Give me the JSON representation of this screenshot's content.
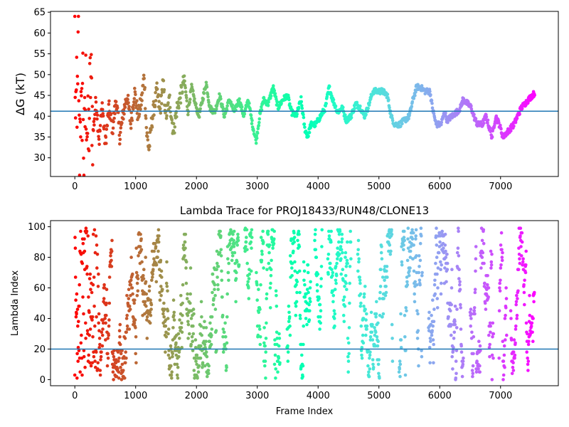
{
  "chart_data": [
    {
      "type": "scatter",
      "title": "",
      "xlabel": "",
      "ylabel": "ΔG (kT)",
      "xlim": [
        -400,
        7950
      ],
      "ylim": [
        25.5,
        65.2
      ],
      "xticks": [
        0,
        1000,
        2000,
        3000,
        4000,
        5000,
        6000,
        7000
      ],
      "yticks": [
        30,
        35,
        40,
        45,
        50,
        55,
        60,
        65
      ],
      "hline": 41.2,
      "hline_color": "#1f77b4",
      "colormap": "rainbow (red at frame 0 → violet at last frame)",
      "frames": 7600,
      "series_keypoints": [
        [
          0,
          62
        ],
        [
          15,
          30
        ],
        [
          30,
          50
        ],
        [
          45,
          38
        ],
        [
          60,
          62
        ],
        [
          75,
          26
        ],
        [
          90,
          45
        ],
        [
          110,
          35
        ],
        [
          130,
          52
        ],
        [
          150,
          28
        ],
        [
          180,
          47
        ],
        [
          220,
          32
        ],
        [
          260,
          50
        ],
        [
          300,
          36
        ],
        [
          350,
          44
        ],
        [
          400,
          34
        ],
        [
          450,
          43
        ],
        [
          500,
          33
        ],
        [
          560,
          42
        ],
        [
          620,
          37
        ],
        [
          680,
          44
        ],
        [
          740,
          35
        ],
        [
          800,
          41
        ],
        [
          860,
          45
        ],
        [
          920,
          38
        ],
        [
          980,
          46
        ],
        [
          1040,
          40
        ],
        [
          1100,
          44
        ],
        [
          1140,
          50
        ],
        [
          1180,
          36
        ],
        [
          1220,
          32
        ],
        [
          1260,
          38
        ],
        [
          1300,
          42
        ],
        [
          1350,
          46
        ],
        [
          1400,
          41
        ],
        [
          1450,
          48
        ],
        [
          1500,
          40
        ],
        [
          1560,
          44
        ],
        [
          1620,
          36
        ],
        [
          1680,
          42
        ],
        [
          1740,
          45
        ],
        [
          1800,
          49
        ],
        [
          1860,
          41
        ],
        [
          1920,
          47
        ],
        [
          1980,
          43
        ],
        [
          2040,
          40
        ],
        [
          2100,
          44
        ],
        [
          2160,
          48
        ],
        [
          2220,
          42
        ],
        [
          2300,
          41
        ],
        [
          2380,
          45
        ],
        [
          2460,
          40
        ],
        [
          2540,
          44
        ],
        [
          2620,
          41
        ],
        [
          2700,
          44
        ],
        [
          2780,
          40
        ],
        [
          2850,
          44
        ],
        [
          2920,
          38
        ],
        [
          2980,
          34
        ],
        [
          3040,
          40
        ],
        [
          3100,
          44
        ],
        [
          3180,
          43
        ],
        [
          3260,
          47
        ],
        [
          3340,
          42
        ],
        [
          3420,
          44
        ],
        [
          3500,
          45
        ],
        [
          3560,
          41
        ],
        [
          3640,
          40
        ],
        [
          3720,
          44
        ],
        [
          3780,
          37
        ],
        [
          3830,
          35
        ],
        [
          3880,
          38
        ],
        [
          3960,
          38
        ],
        [
          4040,
          40
        ],
        [
          4120,
          42
        ],
        [
          4180,
          47
        ],
        [
          4240,
          44
        ],
        [
          4320,
          41
        ],
        [
          4400,
          42
        ],
        [
          4460,
          39
        ],
        [
          4540,
          40
        ],
        [
          4620,
          43
        ],
        [
          4700,
          42
        ],
        [
          4760,
          40
        ],
        [
          4820,
          42
        ],
        [
          4900,
          46
        ],
        [
          4980,
          46
        ],
        [
          5060,
          46
        ],
        [
          5140,
          45
        ],
        [
          5200,
          40
        ],
        [
          5260,
          38
        ],
        [
          5340,
          38
        ],
        [
          5420,
          39
        ],
        [
          5500,
          40
        ],
        [
          5560,
          44
        ],
        [
          5620,
          47
        ],
        [
          5680,
          47
        ],
        [
          5760,
          46
        ],
        [
          5840,
          46
        ],
        [
          5880,
          42
        ],
        [
          5940,
          38
        ],
        [
          6020,
          38
        ],
        [
          6080,
          41
        ],
        [
          6120,
          39
        ],
        [
          6200,
          40
        ],
        [
          6280,
          41
        ],
        [
          6340,
          42
        ],
        [
          6380,
          44
        ],
        [
          6460,
          43
        ],
        [
          6520,
          42
        ],
        [
          6560,
          40
        ],
        [
          6620,
          38
        ],
        [
          6700,
          38
        ],
        [
          6760,
          40
        ],
        [
          6820,
          37
        ],
        [
          6860,
          35
        ],
        [
          6920,
          40
        ],
        [
          6980,
          38
        ],
        [
          7040,
          35
        ],
        [
          7100,
          36
        ],
        [
          7160,
          37
        ],
        [
          7220,
          38
        ],
        [
          7280,
          40
        ],
        [
          7340,
          42
        ],
        [
          7400,
          43
        ],
        [
          7460,
          44
        ],
        [
          7520,
          45
        ],
        [
          7560,
          45.5
        ]
      ]
    },
    {
      "type": "scatter",
      "title": "Lambda Trace for PROJ18433/RUN48/CLONE13",
      "xlabel": "Frame Index",
      "ylabel": "Lambda Index",
      "xlim": [
        -400,
        7950
      ],
      "ylim": [
        -4,
        104
      ],
      "xticks": [
        0,
        1000,
        2000,
        3000,
        4000,
        5000,
        6000,
        7000
      ],
      "yticks": [
        0,
        20,
        40,
        60,
        80,
        100
      ],
      "hline": 20,
      "hline_color": "#1f77b4",
      "colormap": "rainbow (red at frame 0 → violet at last frame)",
      "frames": 7600,
      "value_range": [
        0,
        99
      ]
    }
  ]
}
